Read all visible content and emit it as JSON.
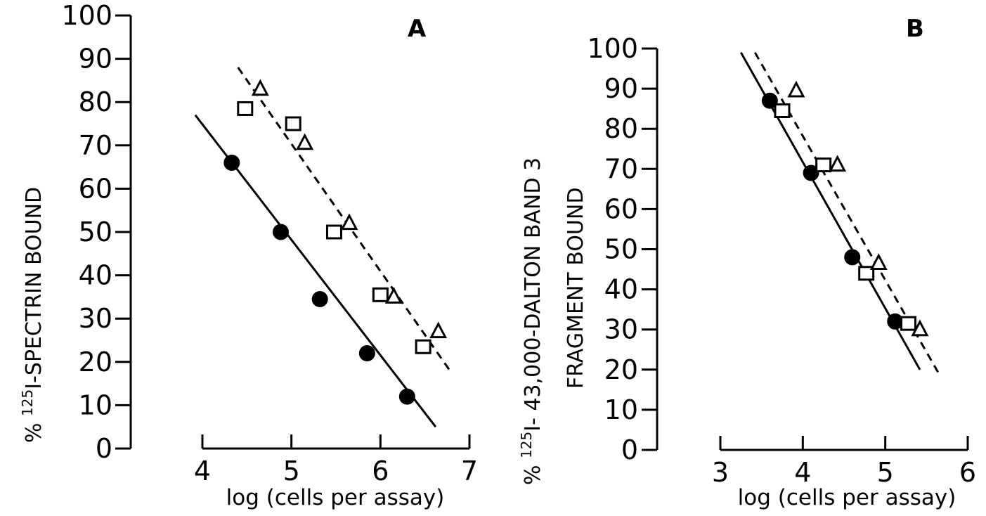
{
  "chart_data": [
    {
      "type": "scatter",
      "panel": "A",
      "title": "A",
      "xlabel": "log (cells per assay)",
      "ylabel_sup": "125",
      "ylabel_pre": "% ",
      "ylabel_main": "I-SPECTRIN BOUND",
      "xlim": [
        4,
        7
      ],
      "ylim": [
        0,
        100
      ],
      "xticks": [
        4,
        5,
        6,
        7
      ],
      "yticks": [
        0,
        10,
        20,
        30,
        40,
        50,
        60,
        70,
        80,
        90,
        100
      ],
      "grid": false,
      "series": [
        {
          "marker": "filled-circle",
          "line": "solid",
          "points": [
            [
              4.33,
              66
            ],
            [
              4.88,
              50
            ],
            [
              5.32,
              34.5
            ],
            [
              5.85,
              22
            ],
            [
              6.3,
              12
            ]
          ],
          "fit": [
            [
              3.92,
              77
            ],
            [
              6.62,
              5
            ]
          ]
        },
        {
          "marker": "open-square",
          "line": "dashed",
          "points": [
            [
              4.48,
              78.5
            ],
            [
              5.02,
              75
            ],
            [
              5.48,
              50
            ],
            [
              6.0,
              35.5
            ],
            [
              6.48,
              23.5
            ]
          ],
          "fit": [
            [
              4.4,
              88
            ],
            [
              6.78,
              18
            ]
          ]
        },
        {
          "marker": "open-triangle",
          "line": "dashed",
          "points": [
            [
              4.65,
              83
            ],
            [
              5.15,
              70.5
            ],
            [
              5.65,
              52
            ],
            [
              6.15,
              35
            ],
            [
              6.65,
              27
            ]
          ]
        }
      ]
    },
    {
      "type": "scatter",
      "panel": "B",
      "title": "B",
      "xlabel": "log (cells per assay)",
      "ylabel_sup": "125",
      "ylabel_pre": "% ",
      "ylabel_main": "I- 43,000-DALTON BAND 3",
      "ylabel_line2": "FRAGMENT BOUND",
      "xlim": [
        3,
        6
      ],
      "ylim": [
        0,
        100
      ],
      "xticks": [
        3,
        4,
        5,
        6
      ],
      "yticks": [
        0,
        10,
        20,
        30,
        40,
        50,
        60,
        70,
        80,
        90,
        100
      ],
      "grid": false,
      "series": [
        {
          "marker": "filled-circle",
          "line": "solid",
          "points": [
            [
              3.6,
              87
            ],
            [
              4.1,
              69
            ],
            [
              4.6,
              48
            ],
            [
              5.12,
              32
            ]
          ],
          "fit": [
            [
              3.25,
              99
            ],
            [
              5.42,
              20
            ]
          ]
        },
        {
          "marker": "open-square",
          "line": "dashed",
          "points": [
            [
              3.75,
              84.5
            ],
            [
              4.25,
              71
            ],
            [
              4.77,
              44
            ],
            [
              5.28,
              31.5
            ]
          ],
          "fit": [
            [
              3.42,
              99
            ],
            [
              5.65,
              19
            ]
          ]
        },
        {
          "marker": "open-triangle",
          "line": "dashed",
          "points": [
            [
              3.92,
              89.5
            ],
            [
              4.42,
              71
            ],
            [
              4.92,
              46.5
            ],
            [
              5.42,
              30
            ]
          ]
        }
      ]
    }
  ]
}
